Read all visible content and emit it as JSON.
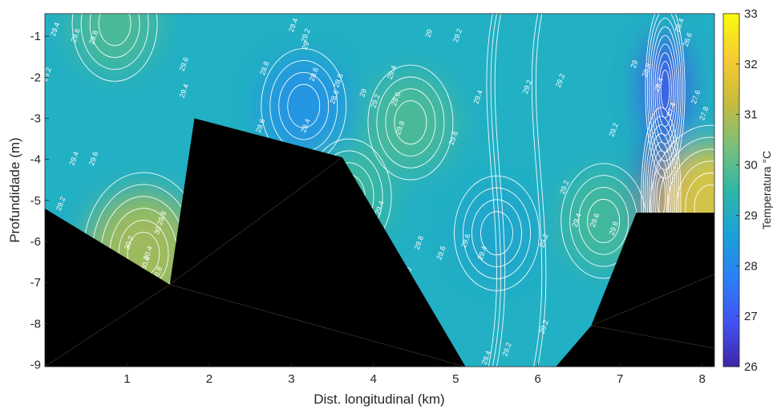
{
  "chart_data": {
    "type": "heatmap",
    "title": "",
    "xlabel": "Dist. longitudinal (km)",
    "ylabel": "Profundidade (m)",
    "xlim": [
      0,
      8.15
    ],
    "ylim": [
      -9.05,
      -0.45
    ],
    "x_ticks": [
      1,
      2,
      3,
      4,
      5,
      6,
      7,
      8
    ],
    "y_ticks": [
      -1,
      -2,
      -3,
      -4,
      -5,
      -6,
      -7,
      -8,
      -9
    ],
    "colorbar": {
      "label": "Temperatura °C",
      "range": [
        26,
        33
      ],
      "ticks": [
        26,
        27,
        28,
        29,
        30,
        31,
        32,
        33
      ],
      "colormap": "parula"
    },
    "field_features": [
      {
        "kind": "warm",
        "x": 1.2,
        "y": -6.3,
        "temp": 31.0
      },
      {
        "kind": "warm",
        "x": 0.85,
        "y": -0.7,
        "temp": 29.9
      },
      {
        "kind": "warm",
        "x": 4.45,
        "y": -3.1,
        "temp": 29.9
      },
      {
        "kind": "warm",
        "x": 3.7,
        "y": -4.9,
        "temp": 29.7
      },
      {
        "kind": "warm",
        "x": 6.8,
        "y": -5.5,
        "temp": 29.8
      },
      {
        "kind": "cool",
        "x": 3.15,
        "y": -2.7,
        "temp": 28.2
      },
      {
        "kind": "cool",
        "x": 5.5,
        "y": -5.8,
        "temp": 28.8
      },
      {
        "kind": "cool",
        "x": 7.55,
        "y": -2.3,
        "temp": 26.8
      },
      {
        "kind": "cool",
        "x": 7.5,
        "y": -4.9,
        "temp": 26.2
      },
      {
        "kind": "warm",
        "x": 8.1,
        "y": -5.15,
        "temp": 32.0
      }
    ],
    "contour_labels": [
      {
        "text": "29.4",
        "x": 0.15,
        "y": -0.85
      },
      {
        "text": "29.6",
        "x": 0.4,
        "y": -1.0
      },
      {
        "text": "29.8",
        "x": 0.62,
        "y": -1.05
      },
      {
        "text": "29.2",
        "x": 0.05,
        "y": -1.95
      },
      {
        "text": "29.4",
        "x": 0.38,
        "y": -4.0
      },
      {
        "text": "29.6",
        "x": 0.62,
        "y": -4.0
      },
      {
        "text": "29.2",
        "x": 0.22,
        "y": -5.1
      },
      {
        "text": "29.6",
        "x": 1.72,
        "y": -1.7
      },
      {
        "text": "29.4",
        "x": 1.72,
        "y": -2.35
      },
      {
        "text": "29.4",
        "x": 3.05,
        "y": -0.75
      },
      {
        "text": "29.2",
        "x": 3.2,
        "y": -1.0
      },
      {
        "text": "29",
        "x": 3.2,
        "y": -1.25
      },
      {
        "text": "28.8",
        "x": 2.7,
        "y": -1.8
      },
      {
        "text": "28.6",
        "x": 3.3,
        "y": -1.95
      },
      {
        "text": "28.8",
        "x": 3.6,
        "y": -2.1
      },
      {
        "text": "28.6",
        "x": 3.55,
        "y": -2.5
      },
      {
        "text": "28.4",
        "x": 3.2,
        "y": -3.2
      },
      {
        "text": "28.6",
        "x": 2.65,
        "y": -3.2
      },
      {
        "text": "29",
        "x": 3.9,
        "y": -2.4
      },
      {
        "text": "29.2",
        "x": 4.05,
        "y": -2.6
      },
      {
        "text": "29.4",
        "x": 4.25,
        "y": -1.9
      },
      {
        "text": "29.6",
        "x": 4.3,
        "y": -2.55
      },
      {
        "text": "29.8",
        "x": 4.35,
        "y": -3.25
      },
      {
        "text": "29.6",
        "x": 5.0,
        "y": -3.5
      },
      {
        "text": "29",
        "x": 4.7,
        "y": -0.95
      },
      {
        "text": "29.2",
        "x": 5.05,
        "y": -1.0
      },
      {
        "text": "29.4",
        "x": 5.3,
        "y": -2.5
      },
      {
        "text": "29.2",
        "x": 5.9,
        "y": -2.25
      },
      {
        "text": "29.8",
        "x": 1.45,
        "y": -5.45
      },
      {
        "text": "30",
        "x": 1.4,
        "y": -5.75
      },
      {
        "text": "30.2",
        "x": 1.05,
        "y": -6.05
      },
      {
        "text": "30.4",
        "x": 1.28,
        "y": -6.3
      },
      {
        "text": "30.6",
        "x": 1.25,
        "y": -6.55
      },
      {
        "text": "30.8",
        "x": 1.4,
        "y": -6.8
      },
      {
        "text": "29.4",
        "x": 4.1,
        "y": -5.2
      },
      {
        "text": "29.8",
        "x": 4.58,
        "y": -6.05
      },
      {
        "text": "29.6",
        "x": 4.85,
        "y": -6.3
      },
      {
        "text": "30",
        "x": 4.45,
        "y": -6.75
      },
      {
        "text": "29.6",
        "x": 5.15,
        "y": -6.0
      },
      {
        "text": "29.4",
        "x": 5.35,
        "y": -6.3
      },
      {
        "text": "29.2",
        "x": 6.1,
        "y": -6.0
      },
      {
        "text": "29.2",
        "x": 6.35,
        "y": -4.7
      },
      {
        "text": "29.4",
        "x": 6.5,
        "y": -5.5
      },
      {
        "text": "29.6",
        "x": 6.72,
        "y": -5.5
      },
      {
        "text": "29.8",
        "x": 6.95,
        "y": -5.7
      },
      {
        "text": "29.2",
        "x": 6.1,
        "y": -8.1
      },
      {
        "text": "29.4",
        "x": 5.4,
        "y": -8.85
      },
      {
        "text": "29.2",
        "x": 5.65,
        "y": -8.65
      },
      {
        "text": "29.2",
        "x": 6.3,
        "y": -2.1
      },
      {
        "text": "29.2",
        "x": 6.95,
        "y": -3.3
      },
      {
        "text": "29",
        "x": 7.2,
        "y": -1.7
      },
      {
        "text": "28.8",
        "x": 7.35,
        "y": -1.85
      },
      {
        "text": "28.4",
        "x": 7.5,
        "y": -2.2
      },
      {
        "text": "27.4",
        "x": 7.65,
        "y": -2.8
      },
      {
        "text": "26.6",
        "x": 7.85,
        "y": -1.1
      },
      {
        "text": "26.4",
        "x": 7.75,
        "y": -0.75
      },
      {
        "text": "27.6",
        "x": 7.95,
        "y": -2.5
      },
      {
        "text": "27.8",
        "x": 8.05,
        "y": -2.9
      }
    ],
    "bathymetry_polygon": [
      [
        0,
        -5.2
      ],
      [
        1.52,
        -7.05
      ],
      [
        1.82,
        -3.0
      ],
      [
        3.62,
        -3.95
      ],
      [
        5.12,
        -9.05
      ],
      [
        6.22,
        -9.05
      ],
      [
        6.65,
        -8.05
      ],
      [
        7.2,
        -5.3
      ],
      [
        8.15,
        -5.3
      ],
      [
        8.15,
        -9.05
      ],
      [
        0,
        -9.05
      ]
    ]
  }
}
